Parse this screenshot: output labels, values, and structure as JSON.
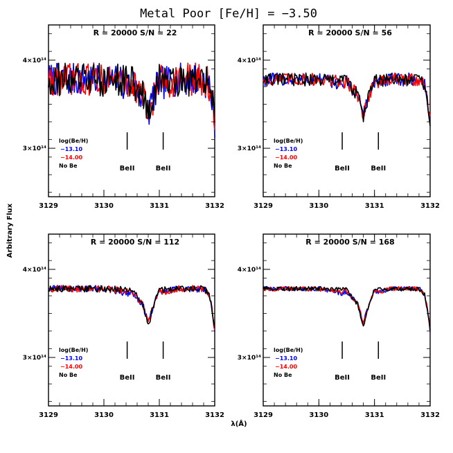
{
  "figure": {
    "title": "Metal Poor [Fe/H] = −3.50",
    "ylabel": "Arbitrary Flux",
    "xlabel": "λ(Å)"
  },
  "colors": {
    "blue": "#0000ff",
    "red": "#ff0000",
    "black": "#000000"
  },
  "chart_data": [
    {
      "type": "line",
      "title": "R = 20000 S/N = 22",
      "xlim": [
        3129,
        3132
      ],
      "ylim": [
        245000000000000.0,
        440000000000000.0
      ],
      "xticks": [
        3129,
        3130,
        3131,
        3132
      ],
      "xtick_labels": [
        "3129",
        "3130",
        "3131",
        "3132"
      ],
      "yticks": [
        300000000000000.0,
        400000000000000.0
      ],
      "ytick_labels": [
        "3×10¹⁴",
        "4×10¹⁴"
      ],
      "noise_amp": 19000000000000.0,
      "legend": {
        "header": "log(Be/H)",
        "entries": [
          {
            "label": "−13.10",
            "color": "#0000ff"
          },
          {
            "label": "−14.00",
            "color": "#ff0000"
          },
          {
            "label": "No Be",
            "color": "#000000"
          }
        ]
      },
      "lines": [
        {
          "x": 3130.42,
          "label": "BeII"
        },
        {
          "x": 3131.07,
          "label": "BeII"
        }
      ],
      "series": [
        {
          "color": "#0000ff",
          "x": [
            3129,
            3129.5,
            3130,
            3130.3,
            3130.4,
            3130.5,
            3130.7,
            3130.8,
            3130.9,
            3131.0,
            3131.1,
            3131.3,
            3131.5,
            3131.8,
            3131.9,
            3131.95,
            3132
          ],
          "y": [
            378000000000000.0,
            378000000000000.0,
            378000000000000.0,
            375000000000000.0,
            372000000000000.0,
            375000000000000.0,
            360000000000000.0,
            340000000000000.0,
            360000000000000.0,
            375000000000000.0,
            374000000000000.0,
            378000000000000.0,
            378000000000000.0,
            378000000000000.0,
            372000000000000.0,
            355000000000000.0,
            330000000000000.0
          ]
        },
        {
          "color": "#ff0000",
          "x": [
            3129,
            3129.5,
            3130,
            3130.3,
            3130.4,
            3130.5,
            3130.7,
            3130.8,
            3130.9,
            3131.0,
            3131.1,
            3131.3,
            3131.5,
            3131.8,
            3131.9,
            3131.95,
            3132
          ],
          "y": [
            378000000000000.0,
            378000000000000.0,
            378000000000000.0,
            376000000000000.0,
            374000000000000.0,
            376000000000000.0,
            360000000000000.0,
            338000000000000.0,
            360000000000000.0,
            376000000000000.0,
            375000000000000.0,
            378000000000000.0,
            378000000000000.0,
            378000000000000.0,
            372000000000000.0,
            355000000000000.0,
            330000000000000.0
          ]
        },
        {
          "color": "#000000",
          "x": [
            3129,
            3129.5,
            3130,
            3130.3,
            3130.4,
            3130.5,
            3130.7,
            3130.8,
            3130.9,
            3131.0,
            3131.1,
            3131.3,
            3131.5,
            3131.8,
            3131.9,
            3131.95,
            3132
          ],
          "y": [
            378000000000000.0,
            378000000000000.0,
            378000000000000.0,
            377000000000000.0,
            377000000000000.0,
            377000000000000.0,
            360000000000000.0,
            336000000000000.0,
            360000000000000.0,
            377000000000000.0,
            377000000000000.0,
            378000000000000.0,
            378000000000000.0,
            378000000000000.0,
            372000000000000.0,
            355000000000000.0,
            330000000000000.0
          ]
        }
      ]
    },
    {
      "type": "line",
      "title": "R = 20000 S/N = 56",
      "xlim": [
        3129,
        3132
      ],
      "ylim": [
        245000000000000.0,
        440000000000000.0
      ],
      "xticks": [
        3129,
        3130,
        3131,
        3132
      ],
      "xtick_labels": [
        "3129",
        "3130",
        "3131",
        "3132"
      ],
      "yticks": [
        300000000000000.0,
        400000000000000.0
      ],
      "ytick_labels": [
        "3×10¹⁴",
        "4×10¹⁴"
      ],
      "noise_amp": 7500000000000.0,
      "legend": {
        "header": "log(Be/H)",
        "entries": [
          {
            "label": "−13.10",
            "color": "#0000ff"
          },
          {
            "label": "−14.00",
            "color": "#ff0000"
          },
          {
            "label": "No Be",
            "color": "#000000"
          }
        ]
      },
      "lines": [
        {
          "x": 3130.42,
          "label": "BeII"
        },
        {
          "x": 3131.07,
          "label": "BeII"
        }
      ],
      "series": [
        {
          "color": "#0000ff",
          "x": [
            3129,
            3129.5,
            3130,
            3130.3,
            3130.4,
            3130.5,
            3130.7,
            3130.8,
            3130.9,
            3131.0,
            3131.1,
            3131.3,
            3131.5,
            3131.8,
            3131.9,
            3131.95,
            3132
          ],
          "y": [
            378000000000000.0,
            378000000000000.0,
            378000000000000.0,
            375000000000000.0,
            372000000000000.0,
            375000000000000.0,
            360000000000000.0,
            340000000000000.0,
            360000000000000.0,
            375000000000000.0,
            374000000000000.0,
            378000000000000.0,
            378000000000000.0,
            378000000000000.0,
            372000000000000.0,
            355000000000000.0,
            330000000000000.0
          ]
        },
        {
          "color": "#ff0000",
          "x": [
            3129,
            3129.5,
            3130,
            3130.3,
            3130.4,
            3130.5,
            3130.7,
            3130.8,
            3130.9,
            3131.0,
            3131.1,
            3131.3,
            3131.5,
            3131.8,
            3131.9,
            3131.95,
            3132
          ],
          "y": [
            378000000000000.0,
            378000000000000.0,
            378000000000000.0,
            376000000000000.0,
            374000000000000.0,
            376000000000000.0,
            360000000000000.0,
            338000000000000.0,
            360000000000000.0,
            376000000000000.0,
            375000000000000.0,
            378000000000000.0,
            378000000000000.0,
            378000000000000.0,
            372000000000000.0,
            355000000000000.0,
            330000000000000.0
          ]
        },
        {
          "color": "#000000",
          "x": [
            3129,
            3129.5,
            3130,
            3130.3,
            3130.4,
            3130.5,
            3130.7,
            3130.8,
            3130.9,
            3131.0,
            3131.1,
            3131.3,
            3131.5,
            3131.8,
            3131.9,
            3131.95,
            3132
          ],
          "y": [
            378000000000000.0,
            378000000000000.0,
            378000000000000.0,
            377000000000000.0,
            377000000000000.0,
            377000000000000.0,
            360000000000000.0,
            336000000000000.0,
            360000000000000.0,
            377000000000000.0,
            377000000000000.0,
            378000000000000.0,
            378000000000000.0,
            378000000000000.0,
            372000000000000.0,
            355000000000000.0,
            330000000000000.0
          ]
        }
      ]
    },
    {
      "type": "line",
      "title": "R = 20000 S/N = 112",
      "xlim": [
        3129,
        3132
      ],
      "ylim": [
        245000000000000.0,
        440000000000000.0
      ],
      "xticks": [
        3129,
        3130,
        3131,
        3132
      ],
      "xtick_labels": [
        "3129",
        "3130",
        "3131",
        "3132"
      ],
      "yticks": [
        300000000000000.0,
        400000000000000.0
      ],
      "ytick_labels": [
        "3×10¹⁴",
        "4×10¹⁴"
      ],
      "noise_amp": 3800000000000.0,
      "legend": {
        "header": "log(Be/H)",
        "entries": [
          {
            "label": "−13.10",
            "color": "#0000ff"
          },
          {
            "label": "−14.00",
            "color": "#ff0000"
          },
          {
            "label": "No Be",
            "color": "#000000"
          }
        ]
      },
      "lines": [
        {
          "x": 3130.42,
          "label": "BeII"
        },
        {
          "x": 3131.07,
          "label": "BeII"
        }
      ],
      "series": [
        {
          "color": "#0000ff",
          "x": [
            3129,
            3129.5,
            3130,
            3130.3,
            3130.4,
            3130.5,
            3130.7,
            3130.8,
            3130.9,
            3131.0,
            3131.1,
            3131.3,
            3131.5,
            3131.8,
            3131.9,
            3131.95,
            3132
          ],
          "y": [
            378000000000000.0,
            378000000000000.0,
            378000000000000.0,
            375000000000000.0,
            372000000000000.0,
            375000000000000.0,
            360000000000000.0,
            340000000000000.0,
            360000000000000.0,
            375000000000000.0,
            374000000000000.0,
            378000000000000.0,
            378000000000000.0,
            378000000000000.0,
            372000000000000.0,
            355000000000000.0,
            330000000000000.0
          ]
        },
        {
          "color": "#ff0000",
          "x": [
            3129,
            3129.5,
            3130,
            3130.3,
            3130.4,
            3130.5,
            3130.7,
            3130.8,
            3130.9,
            3131.0,
            3131.1,
            3131.3,
            3131.5,
            3131.8,
            3131.9,
            3131.95,
            3132
          ],
          "y": [
            378000000000000.0,
            378000000000000.0,
            378000000000000.0,
            376000000000000.0,
            374000000000000.0,
            376000000000000.0,
            360000000000000.0,
            338000000000000.0,
            360000000000000.0,
            376000000000000.0,
            375000000000000.0,
            378000000000000.0,
            378000000000000.0,
            378000000000000.0,
            372000000000000.0,
            355000000000000.0,
            330000000000000.0
          ]
        },
        {
          "color": "#000000",
          "x": [
            3129,
            3129.5,
            3130,
            3130.3,
            3130.4,
            3130.5,
            3130.7,
            3130.8,
            3130.9,
            3131.0,
            3131.1,
            3131.3,
            3131.5,
            3131.8,
            3131.9,
            3131.95,
            3132
          ],
          "y": [
            378000000000000.0,
            378000000000000.0,
            378000000000000.0,
            377000000000000.0,
            377000000000000.0,
            377000000000000.0,
            360000000000000.0,
            336000000000000.0,
            360000000000000.0,
            377000000000000.0,
            377000000000000.0,
            378000000000000.0,
            378000000000000.0,
            378000000000000.0,
            372000000000000.0,
            355000000000000.0,
            330000000000000.0
          ]
        }
      ]
    },
    {
      "type": "line",
      "title": "R = 20000 S/N = 168",
      "xlim": [
        3129,
        3132
      ],
      "ylim": [
        245000000000000.0,
        440000000000000.0
      ],
      "xticks": [
        3129,
        3130,
        3131,
        3132
      ],
      "xtick_labels": [
        "3129",
        "3130",
        "3131",
        "3132"
      ],
      "yticks": [
        300000000000000.0,
        400000000000000.0
      ],
      "ytick_labels": [
        "3×10¹⁴",
        "4×10¹⁴"
      ],
      "noise_amp": 2500000000000.0,
      "legend": {
        "header": "log(Be/H)",
        "entries": [
          {
            "label": "−13.10",
            "color": "#0000ff"
          },
          {
            "label": "−14.00",
            "color": "#ff0000"
          },
          {
            "label": "No Be",
            "color": "#000000"
          }
        ]
      },
      "lines": [
        {
          "x": 3130.42,
          "label": "BeII"
        },
        {
          "x": 3131.07,
          "label": "BeII"
        }
      ],
      "series": [
        {
          "color": "#0000ff",
          "x": [
            3129,
            3129.5,
            3130,
            3130.3,
            3130.4,
            3130.5,
            3130.7,
            3130.8,
            3130.9,
            3131.0,
            3131.1,
            3131.3,
            3131.5,
            3131.8,
            3131.9,
            3131.95,
            3132
          ],
          "y": [
            378000000000000.0,
            378000000000000.0,
            378000000000000.0,
            375000000000000.0,
            372000000000000.0,
            375000000000000.0,
            360000000000000.0,
            340000000000000.0,
            360000000000000.0,
            375000000000000.0,
            374000000000000.0,
            378000000000000.0,
            378000000000000.0,
            378000000000000.0,
            372000000000000.0,
            355000000000000.0,
            330000000000000.0
          ]
        },
        {
          "color": "#ff0000",
          "x": [
            3129,
            3129.5,
            3130,
            3130.3,
            3130.4,
            3130.5,
            3130.7,
            3130.8,
            3130.9,
            3131.0,
            3131.1,
            3131.3,
            3131.5,
            3131.8,
            3131.9,
            3131.95,
            3132
          ],
          "y": [
            378000000000000.0,
            378000000000000.0,
            378000000000000.0,
            376000000000000.0,
            374000000000000.0,
            376000000000000.0,
            360000000000000.0,
            338000000000000.0,
            360000000000000.0,
            376000000000000.0,
            375000000000000.0,
            378000000000000.0,
            378000000000000.0,
            378000000000000.0,
            372000000000000.0,
            355000000000000.0,
            330000000000000.0
          ]
        },
        {
          "color": "#000000",
          "x": [
            3129,
            3129.5,
            3130,
            3130.3,
            3130.4,
            3130.5,
            3130.7,
            3130.8,
            3130.9,
            3131.0,
            3131.1,
            3131.3,
            3131.5,
            3131.8,
            3131.9,
            3131.95,
            3132
          ],
          "y": [
            378000000000000.0,
            378000000000000.0,
            378000000000000.0,
            377000000000000.0,
            377000000000000.0,
            377000000000000.0,
            360000000000000.0,
            336000000000000.0,
            360000000000000.0,
            377000000000000.0,
            377000000000000.0,
            378000000000000.0,
            378000000000000.0,
            378000000000000.0,
            372000000000000.0,
            355000000000000.0,
            330000000000000.0
          ]
        }
      ]
    }
  ]
}
